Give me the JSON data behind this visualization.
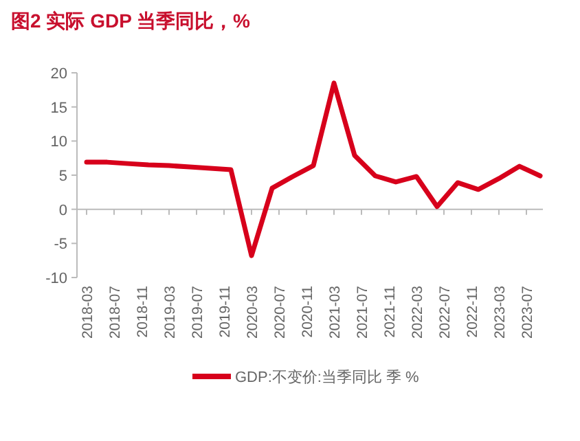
{
  "chart_data": {
    "type": "line",
    "title": "图2 实际 GDP 当季同比，%",
    "x": [
      "2018-03",
      "2018-06",
      "2018-09",
      "2018-12",
      "2019-03",
      "2019-06",
      "2019-09",
      "2019-12",
      "2020-03",
      "2020-06",
      "2020-09",
      "2020-12",
      "2021-03",
      "2021-06",
      "2021-09",
      "2021-12",
      "2022-03",
      "2022-06",
      "2022-09",
      "2022-12",
      "2023-03",
      "2023-06",
      "2023-09"
    ],
    "series": [
      {
        "name": "GDP:不变价:当季同比 季 %",
        "color": "#d7001b",
        "values": [
          6.9,
          6.9,
          6.7,
          6.5,
          6.4,
          6.2,
          6.0,
          5.8,
          -6.8,
          3.1,
          4.8,
          6.4,
          18.5,
          7.9,
          4.9,
          4.0,
          4.8,
          0.4,
          3.9,
          2.9,
          4.5,
          6.3,
          4.9
        ]
      }
    ],
    "xlim": [
      "2018-03",
      "2023-09"
    ],
    "xticks": [
      {
        "value": "2018-03",
        "label": "2018-03"
      },
      {
        "value": "2018-07",
        "label": "2018-07"
      },
      {
        "value": "2018-11",
        "label": "2018-11"
      },
      {
        "value": "2019-03",
        "label": "2019-03"
      },
      {
        "value": "2019-07",
        "label": "2019-07"
      },
      {
        "value": "2019-11",
        "label": "2019-11"
      },
      {
        "value": "2020-03",
        "label": "2020-03"
      },
      {
        "value": "2020-07",
        "label": "2020-07"
      },
      {
        "value": "2020-11",
        "label": "2020-11"
      },
      {
        "value": "2021-03",
        "label": "2021-03"
      },
      {
        "value": "2021-07",
        "label": "2021-07"
      },
      {
        "value": "2021-11",
        "label": "2021-11"
      },
      {
        "value": "2022-03",
        "label": "2022-03"
      },
      {
        "value": "2022-07",
        "label": "2022-07"
      },
      {
        "value": "2022-11",
        "label": "2022-11"
      },
      {
        "value": "2023-03",
        "label": "2023-03"
      },
      {
        "value": "2023-07",
        "label": "2023-07"
      }
    ],
    "ylim": [
      -10,
      20
    ],
    "yticks": [
      -10,
      -5,
      0,
      5,
      10,
      15,
      20
    ],
    "legend": "bottom",
    "marker": "none",
    "line_style": "solid"
  }
}
